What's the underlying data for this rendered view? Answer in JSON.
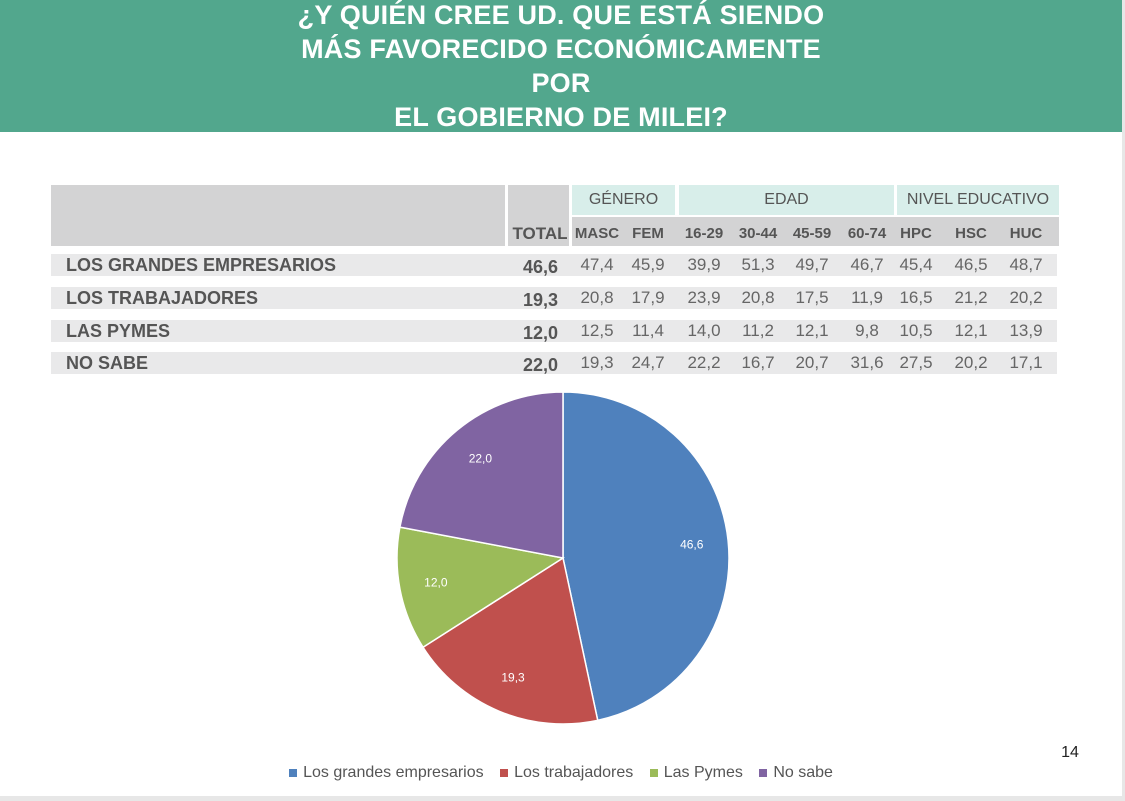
{
  "title": [
    "¿Y QUIÉN CREE UD. QUE ESTÁ SIENDO",
    "MÁS FAVORECIDO ECONÓMICAMENTE POR",
    "EL GOBIERNO DE MILEI?"
  ],
  "table": {
    "total_label": "TOTAL",
    "groups": [
      "GÉNERO",
      "EDAD",
      "NIVEL EDUCATIVO"
    ],
    "columns": [
      "MASC",
      "FEM",
      "16-29",
      "30-44",
      "45-59",
      "60-74",
      "HPC",
      "HSC",
      "HUC"
    ],
    "rows": [
      {
        "label": "LOS GRANDES EMPRESARIOS",
        "total": "46,6",
        "values": [
          "47,4",
          "45,9",
          "39,9",
          "51,3",
          "49,7",
          "46,7",
          "45,4",
          "46,5",
          "48,7"
        ]
      },
      {
        "label": "LOS TRABAJADORES",
        "total": "19,3",
        "values": [
          "20,8",
          "17,9",
          "23,9",
          "20,8",
          "17,5",
          "11,9",
          "16,5",
          "21,2",
          "20,2"
        ]
      },
      {
        "label": "LAS PYMES",
        "total": "12,0",
        "values": [
          "12,5",
          "11,4",
          "14,0",
          "11,2",
          "12,1",
          "9,8",
          "10,5",
          "12,1",
          "13,9"
        ]
      },
      {
        "label": "NO SABE",
        "total": "22,0",
        "values": [
          "19,3",
          "24,7",
          "22,2",
          "16,7",
          "20,7",
          "31,6",
          "27,5",
          "20,2",
          "17,1"
        ]
      }
    ]
  },
  "chart_data": {
    "type": "pie",
    "categories": [
      "Los grandes empresarios",
      "Los trabajadores",
      "Las Pymes",
      "No sabe"
    ],
    "values": [
      46.6,
      19.3,
      12.0,
      22.0
    ],
    "labels": [
      "46,6",
      "19,3",
      "12,0",
      "22,0"
    ],
    "colors": [
      "#4f81bd",
      "#c0504d",
      "#9bbb59",
      "#8064a2"
    ],
    "legend_position": "bottom"
  },
  "page_number": "14"
}
